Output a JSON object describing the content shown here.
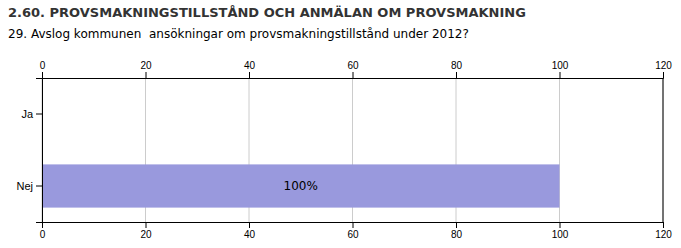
{
  "chart_data": {
    "type": "bar",
    "orientation": "horizontal",
    "title": "2.60. PROVSMAKNINGSTILLSTÅND OCH ANMÄLAN OM PROVSMAKNING",
    "subtitle": "29. Avslog kommunen  ansökningar om provsmakningstillstånd under 2012?",
    "categories": [
      "Ja",
      "Nej"
    ],
    "values": [
      0,
      100
    ],
    "value_labels": [
      null,
      "100%"
    ],
    "data_labels": true,
    "color": "#9999dd",
    "xlim": [
      0,
      120
    ],
    "xticks": [
      0,
      20,
      40,
      60,
      80,
      100,
      120
    ],
    "grid": true
  }
}
